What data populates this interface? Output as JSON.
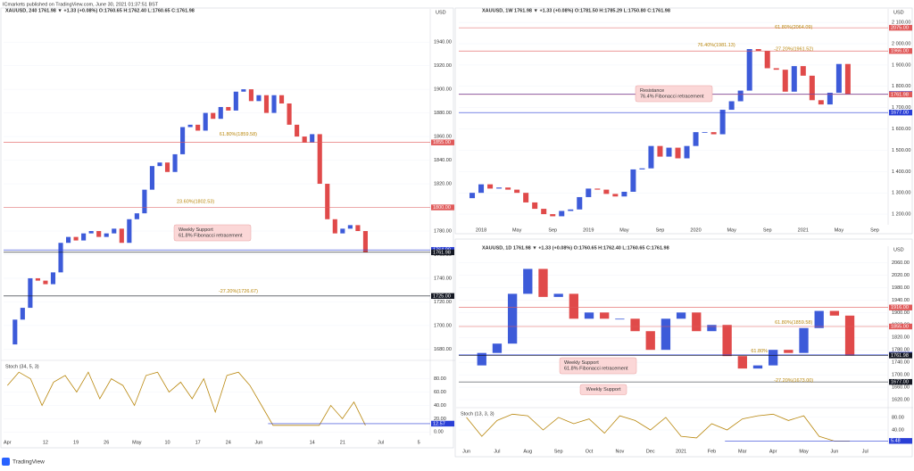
{
  "header": "ICmarkets published on TradingView.com, June 30, 2021 01:37:51 BST",
  "footer": "TradingView",
  "chart_data": [
    {
      "type": "candlestick",
      "title": "XAUUSD, 240  1761.98 ▼ +1.33 (+0.08%) O:1760.65 H:1762.40 L:1760.65 C:1761.98",
      "currency": "USD",
      "up_color": "#3d5bd9",
      "down_color": "#e04a4a",
      "categories": [
        "Apr",
        null,
        null,
        null,
        null,
        "12",
        null,
        null,
        null,
        "19",
        null,
        null,
        null,
        "26",
        null,
        null,
        null,
        "May",
        null,
        null,
        null,
        "10",
        null,
        null,
        null,
        "17",
        null,
        null,
        null,
        "24",
        null,
        null,
        null,
        "Jun",
        null,
        null,
        null,
        null,
        null,
        null,
        "14",
        null,
        null,
        null,
        "21",
        null,
        null,
        null,
        null,
        "Jul",
        null,
        null,
        null,
        null,
        "5",
        null
      ],
      "values": [
        1684,
        1705,
        1715,
        1740,
        1738,
        1735,
        1745,
        1770,
        1775,
        1772,
        1778,
        1780,
        1775,
        1778,
        1782,
        1770,
        1790,
        1795,
        1815,
        1835,
        1838,
        1830,
        1845,
        1868,
        1870,
        1865,
        1880,
        1875,
        1885,
        1882,
        1898,
        1900,
        1890,
        1895,
        1880,
        1895,
        1888,
        1870,
        1860,
        1855,
        1862,
        1820,
        1790,
        1778,
        1782,
        1785,
        1780,
        1762,
        null,
        null,
        null,
        null,
        null,
        null,
        null,
        null
      ],
      "ylim": [
        1672,
        1962
      ],
      "yticks": [
        {
          "value": 1680,
          "label": "1680.00"
        },
        {
          "value": 1700,
          "label": "1700.00"
        },
        {
          "value": 1720,
          "label": "1720.00"
        },
        {
          "value": 1740,
          "label": "1740.00"
        },
        {
          "value": 1760,
          "label": "1760.00"
        },
        {
          "value": 1780,
          "label": "1780.00"
        },
        {
          "value": 1800,
          "label": "1800.00"
        },
        {
          "value": 1820,
          "label": "1820.00"
        },
        {
          "value": 1840,
          "label": "1840.00"
        },
        {
          "value": 1860,
          "label": "1860.00"
        },
        {
          "value": 1880,
          "label": "1880.00"
        },
        {
          "value": 1900,
          "label": "1900.00"
        },
        {
          "value": 1920,
          "label": "1920.00"
        },
        {
          "value": 1940,
          "label": "1940.00"
        }
      ],
      "levels": [
        {
          "value": 1855,
          "label": "1855.00",
          "color": "#e05a5a"
        },
        {
          "value": 1800,
          "label": "1800.00",
          "color": "#e05a5a"
        },
        {
          "value": 1764,
          "label": "1764.00",
          "color": "#2a3fd6"
        },
        {
          "value": 1761.98,
          "label": "1761.98",
          "color": "#131722"
        },
        {
          "value": 1725,
          "label": "1725.00",
          "color": "#131722"
        }
      ],
      "fib_labels": [
        {
          "value": 1859.58,
          "label": "61.80%(1859.58)"
        },
        {
          "value": 1802.53,
          "label": "23.60%(1802.53)"
        },
        {
          "value": 1726.67,
          "label": "-27.20%(1726.67)"
        }
      ],
      "annotations": [
        [
          "Weekly Support",
          "61.8% Fibonacci retracement"
        ]
      ],
      "indicator": {
        "title": "Stoch (34, 5, 3)",
        "color": "#b8860b",
        "values": [
          70,
          90,
          80,
          40,
          75,
          85,
          60,
          90,
          50,
          80,
          70,
          40,
          85,
          90,
          60,
          75,
          50,
          80,
          30,
          85,
          90,
          70,
          40,
          10,
          10,
          10,
          10,
          10,
          40,
          20,
          45,
          10
        ],
        "ylim": [
          -5,
          105
        ],
        "yticks": [
          {
            "value": 0,
            "label": "0.00"
          },
          {
            "value": 20,
            "label": "20.00"
          },
          {
            "value": 40,
            "label": "40.00"
          },
          {
            "value": 60,
            "label": "60.00"
          },
          {
            "value": 80,
            "label": "80.00"
          }
        ],
        "level": {
          "value": 12.57,
          "label": "12.57"
        }
      }
    },
    {
      "type": "candlestick",
      "title": "XAUUSD, 1W  1761.98 ▼ +1.33 (+0.08%) O:1781.50 H:1785.29 L:1750.80 C:1761.98",
      "currency": "USD",
      "up_color": "#3d5bd9",
      "down_color": "#e04a4a",
      "categories": [
        null,
        null,
        "2018",
        null,
        null,
        null,
        "May",
        null,
        null,
        null,
        "Sep",
        null,
        null,
        null,
        "2019",
        null,
        null,
        null,
        "May",
        null,
        null,
        null,
        "Sep",
        null,
        null,
        null,
        "2020",
        null,
        null,
        null,
        "May",
        null,
        null,
        null,
        "Sep",
        null,
        null,
        null,
        "2021",
        null,
        null,
        null,
        "May",
        null,
        null,
        null,
        "Sep",
        null
      ],
      "values": [
        1275,
        1300,
        1340,
        1320,
        1325,
        1315,
        1300,
        1255,
        1225,
        1200,
        1190,
        1215,
        1222,
        1280,
        1320,
        1315,
        1295,
        1283,
        1305,
        1410,
        1415,
        1520,
        1470,
        1512,
        1462,
        1520,
        1585,
        1585,
        1575,
        1690,
        1730,
        1780,
        1975,
        1965,
        1885,
        1878,
        1775,
        1895,
        1850,
        1735,
        1715,
        1770,
        1905,
        1762,
        null,
        null,
        null,
        null
      ],
      "ylim": [
        1150,
        2130
      ],
      "yticks": [
        {
          "value": 1200,
          "label": "1 200.00"
        },
        {
          "value": 1300,
          "label": "1 300.00"
        },
        {
          "value": 1400,
          "label": "1 400.00"
        },
        {
          "value": 1500,
          "label": "1 500.00"
        },
        {
          "value": 1600,
          "label": "1 600.00"
        },
        {
          "value": 1700,
          "label": "1 700.00"
        },
        {
          "value": 1800,
          "label": "1 800.00"
        },
        {
          "value": 1900,
          "label": "1 900.00"
        },
        {
          "value": 2000,
          "label": "2 000.00"
        },
        {
          "value": 2100,
          "label": "2 100.00"
        }
      ],
      "levels": [
        {
          "value": 2075,
          "label": "2075.00",
          "color": "#e05a5a"
        },
        {
          "value": 1966,
          "label": "1966.00",
          "color": "#e05a5a"
        },
        {
          "value": 1764,
          "label": "1764.00",
          "color": "#2a3fd6"
        },
        {
          "value": 1761.98,
          "label": "1761.98",
          "color": "#e05a5a"
        },
        {
          "value": 1677,
          "label": "1677.00",
          "color": "#2a3fd6"
        }
      ],
      "fib_labels": [
        {
          "value": 2064.09,
          "label": "61.80%(2064.09)"
        },
        {
          "value": 1961.52,
          "label": "-27.20%(1961.52)"
        },
        {
          "value": 1981.13,
          "label": "76.40%(1981.13)"
        }
      ],
      "annotations": [
        [
          "Resistance",
          "76.4% Fibonacci retracement"
        ]
      ]
    },
    {
      "type": "candlestick",
      "title": "XAUUSD, 1D  1761.98 ▼ +1.33 (+0.08%) O:1760.65 H:1762.40 L:1760.65 C:1761.98",
      "currency": "USD",
      "up_color": "#3d5bd9",
      "down_color": "#e04a4a",
      "categories": [
        "Jun",
        null,
        "Jul",
        null,
        "Aug",
        null,
        "Sep",
        null,
        "Oct",
        null,
        "Nov",
        null,
        "Dec",
        null,
        "2021",
        null,
        "Feb",
        null,
        "Mar",
        null,
        "Apr",
        null,
        "May",
        null,
        "Jun",
        null,
        "Jul",
        null
      ],
      "values": [
        1730,
        1770,
        1800,
        1960,
        2040,
        1950,
        1960,
        1880,
        1900,
        1880,
        1880,
        1840,
        1780,
        1880,
        1900,
        1840,
        1860,
        1760,
        1720,
        1730,
        1780,
        1770,
        1850,
        1905,
        1890,
        1762,
        null,
        null
      ],
      "ylim": [
        1600,
        2090
      ],
      "yticks": [
        {
          "value": 1620,
          "label": "1620.00"
        },
        {
          "value": 1660,
          "label": "1660.00"
        },
        {
          "value": 1700,
          "label": "1700.00"
        },
        {
          "value": 1740,
          "label": "1740.00"
        },
        {
          "value": 1780,
          "label": "1780.00"
        },
        {
          "value": 1820,
          "label": "1820.00"
        },
        {
          "value": 1860,
          "label": "1860.00"
        },
        {
          "value": 1900,
          "label": "1900.00"
        },
        {
          "value": 1940,
          "label": "1940.00"
        },
        {
          "value": 1980,
          "label": "1980.00"
        },
        {
          "value": 2020,
          "label": "2020.00"
        },
        {
          "value": 2060,
          "label": "2060.00"
        }
      ],
      "levels": [
        {
          "value": 1916,
          "label": "1916.00",
          "color": "#e05a5a"
        },
        {
          "value": 1855,
          "label": "1855.00",
          "color": "#e05a5a"
        },
        {
          "value": 1764,
          "label": "1764.00",
          "color": "#2a3fd6"
        },
        {
          "value": 1761.98,
          "label": "1761.98",
          "color": "#131722"
        },
        {
          "value": 1677,
          "label": "1677.00",
          "color": "#131722"
        }
      ],
      "fib_labels": [
        {
          "value": 1859.58,
          "label": "61.80%(1859.58)"
        },
        {
          "value": 1768,
          "label": "61.80%"
        },
        {
          "value": 1673,
          "label": "-27.20%(1673.00)"
        }
      ],
      "annotations": [
        [
          "Weekly Support",
          "61.8% Fibonacci retracement"
        ],
        [
          "Weekly Support"
        ]
      ],
      "indicator": {
        "title": "Stoch (13, 3, 3)",
        "color": "#b8860b",
        "values": [
          80,
          20,
          70,
          90,
          85,
          40,
          80,
          60,
          75,
          30,
          85,
          70,
          40,
          80,
          20,
          15,
          60,
          40,
          75,
          85,
          90,
          70,
          85,
          20,
          5,
          5
        ],
        "ylim": [
          -5,
          105
        ],
        "yticks": [
          {
            "value": 40,
            "label": "40.00"
          },
          {
            "value": 80,
            "label": "80.00"
          }
        ],
        "level": {
          "value": 5.48,
          "label": "5.48"
        }
      }
    }
  ]
}
